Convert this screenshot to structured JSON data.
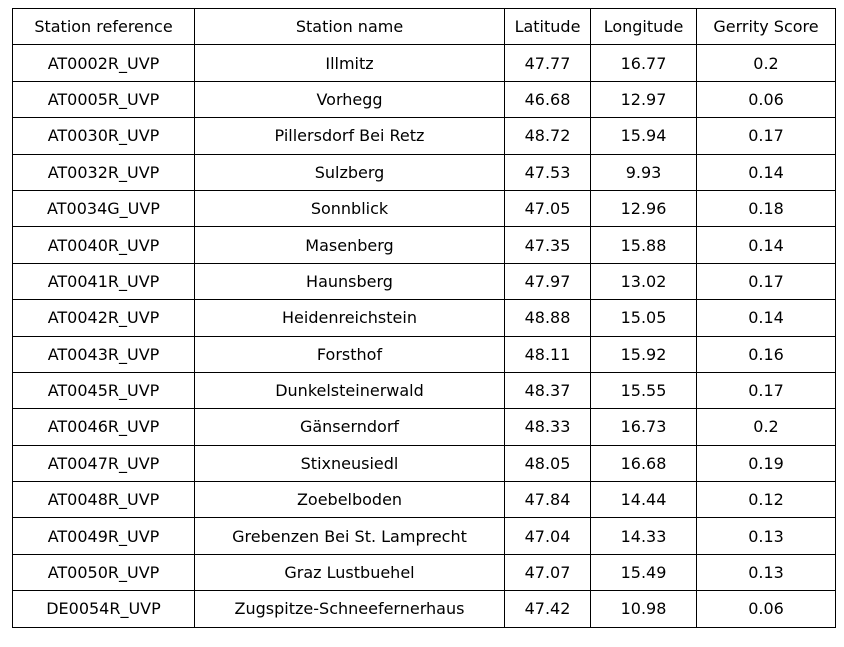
{
  "table": {
    "header": [
      "Station reference",
      "Station name",
      "Latitude",
      "Longitude",
      "Gerrity Score"
    ],
    "rows": [
      [
        "AT0002R_UVP",
        "Illmitz",
        47.77,
        16.77,
        0.2
      ],
      [
        "AT0005R_UVP",
        "Vorhegg",
        46.68,
        12.97,
        0.06
      ],
      [
        "AT0030R_UVP",
        "Pillersdorf Bei Retz",
        48.72,
        15.94,
        0.17
      ],
      [
        "AT0032R_UVP",
        "Sulzberg",
        47.53,
        9.93,
        0.14
      ],
      [
        "AT0034G_UVP",
        "Sonnblick",
        47.05,
        12.96,
        0.18
      ],
      [
        "AT0040R_UVP",
        "Masenberg",
        47.35,
        15.88,
        0.14
      ],
      [
        "AT0041R_UVP",
        "Haunsberg",
        47.97,
        13.02,
        0.17
      ],
      [
        "AT0042R_UVP",
        "Heidenreichstein",
        48.88,
        15.05,
        0.14
      ],
      [
        "AT0043R_UVP",
        "Forsthof",
        48.11,
        15.92,
        0.16
      ],
      [
        "AT0045R_UVP",
        "Dunkelsteinerwald",
        48.37,
        15.55,
        0.17
      ],
      [
        "AT0046R_UVP",
        "Gänserndorf",
        48.33,
        16.73,
        0.2
      ],
      [
        "AT0047R_UVP",
        "Stixneusiedl",
        48.05,
        16.68,
        0.19
      ],
      [
        "AT0048R_UVP",
        "Zoebelboden",
        47.84,
        14.44,
        0.12
      ],
      [
        "AT0049R_UVP",
        "Grebenzen Bei St. Lamprecht",
        47.04,
        14.33,
        0.13
      ],
      [
        "AT0050R_UVP",
        "Graz Lustbuehel",
        47.07,
        15.49,
        0.13
      ],
      [
        "DE0054R_UVP",
        "Zugspitze-Schneefernerhaus",
        47.42,
        10.98,
        0.06
      ]
    ]
  }
}
